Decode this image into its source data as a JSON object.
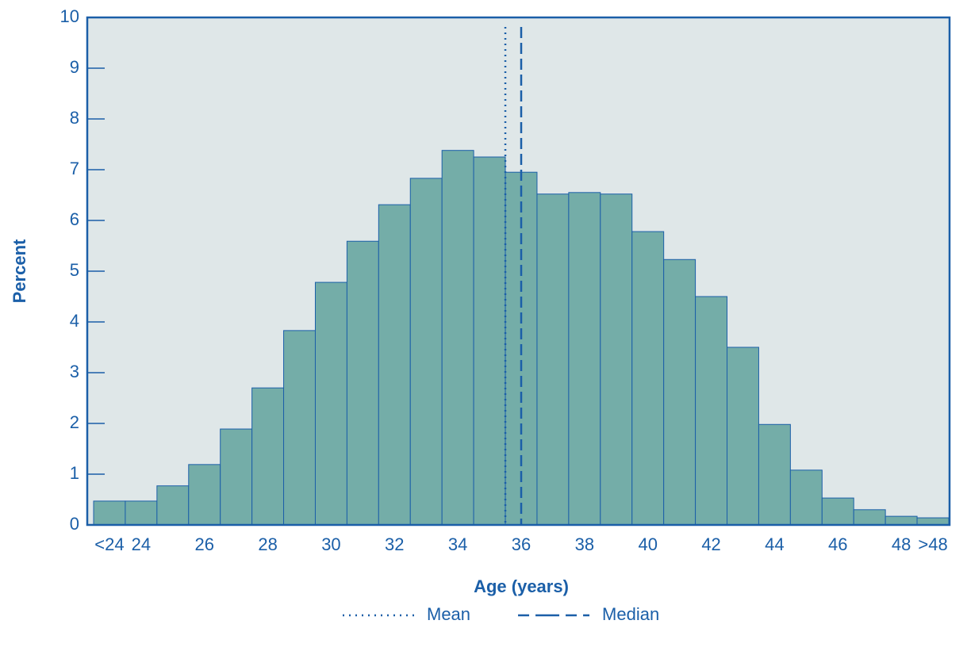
{
  "chart_data": {
    "type": "histogram",
    "xlabel": "Age (years)",
    "ylabel": "Percent",
    "categories": [
      "<24",
      "24",
      null,
      "26",
      null,
      "28",
      null,
      "30",
      null,
      "32",
      null,
      "34",
      null,
      "36",
      null,
      "38",
      null,
      "40",
      null,
      "42",
      null,
      "44",
      null,
      "46",
      null,
      "48",
      ">48"
    ],
    "values": [
      0.47,
      0.47,
      0.77,
      1.19,
      1.89,
      2.7,
      3.83,
      4.78,
      5.59,
      6.31,
      6.83,
      7.38,
      7.25,
      6.95,
      6.52,
      6.55,
      6.52,
      5.78,
      5.23,
      4.5,
      3.5,
      1.98,
      1.08,
      0.53,
      0.3,
      0.17,
      0.14
    ],
    "color": "#74ada8",
    "ylim": [
      0,
      10
    ],
    "yticks": [
      0,
      1,
      2,
      3,
      4,
      5,
      6,
      7,
      8,
      9,
      10
    ],
    "reference_lines": [
      {
        "name": "Mean",
        "value": 35.5,
        "style": "dotted"
      },
      {
        "name": "Median",
        "value": 36,
        "style": "dashed"
      }
    ]
  }
}
